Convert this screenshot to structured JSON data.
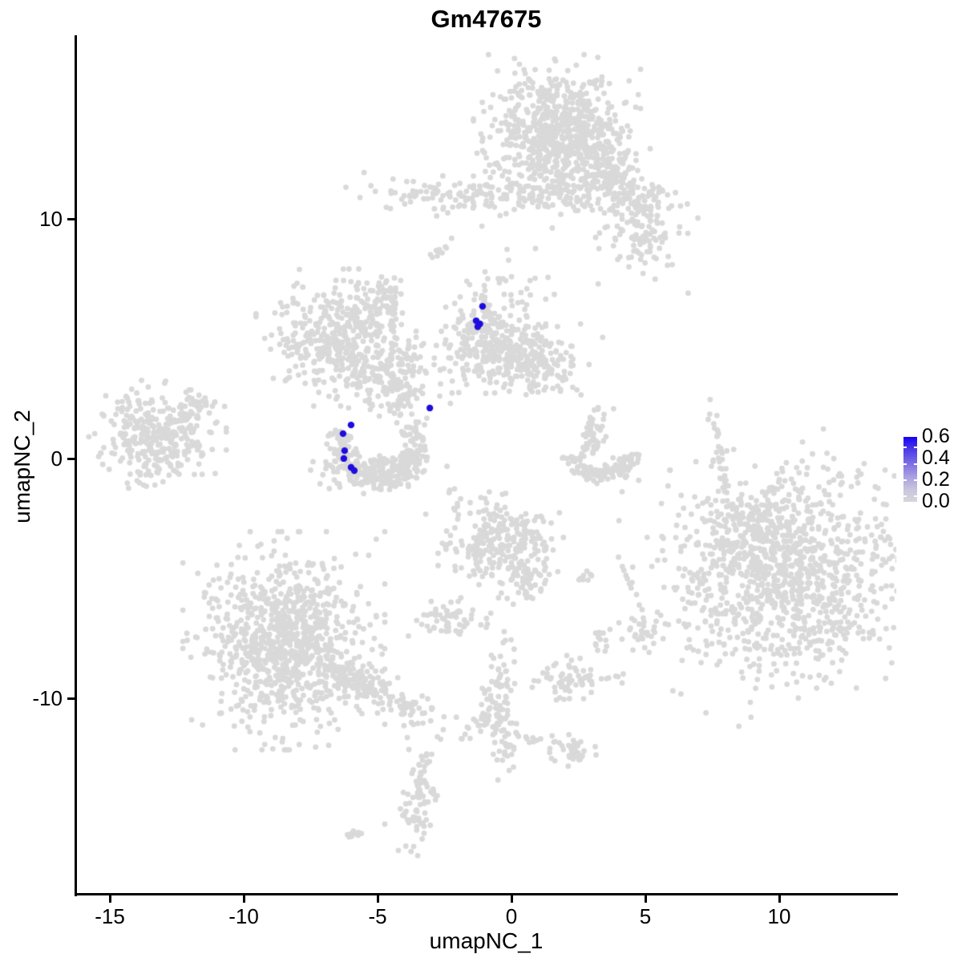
{
  "title": "Gm47675",
  "axes": {
    "x": {
      "label": "umapNC_1",
      "tick_labels": [
        "-15",
        "-10",
        "-5",
        "0",
        "5",
        "10"
      ],
      "tick_values": [
        -15,
        -10,
        -5,
        0,
        5,
        10
      ]
    },
    "y": {
      "label": "umapNC_2",
      "tick_labels": [
        "10",
        "0",
        "-10"
      ],
      "tick_values": [
        10,
        0,
        -10
      ]
    }
  },
  "legend": {
    "labels": [
      "0.6",
      "0.4",
      "0.2",
      "0.0"
    ],
    "tick_values": [
      0.6,
      0.4,
      0.2,
      0.0
    ],
    "high_color": "#1602f2",
    "low_color": "#d8d6da"
  },
  "colors": {
    "background": "#ffffff",
    "point_gray": "#d9d9d9",
    "point_blue": "#1e0ddd",
    "axis": "#000000"
  },
  "chart_data": {
    "type": "scatter",
    "title": "Gm47675",
    "xlabel": "umapNC_1",
    "ylabel": "umapNC_2",
    "xlim": [
      -16.3,
      14.4
    ],
    "ylim": [
      -18.2,
      17.6
    ],
    "grid": false,
    "legend_position": "right",
    "colorbar": {
      "min": 0.0,
      "max": 0.65,
      "ticks": [
        0.0,
        0.2,
        0.4,
        0.6
      ]
    },
    "point_radius_px": 3.4,
    "clusters": [
      {
        "name": "top-main",
        "kind": "gauss",
        "center": [
          1.7,
          13.6
        ],
        "sd": [
          1.2,
          1.25
        ],
        "rot": 0,
        "n": 700
      },
      {
        "name": "top-sub",
        "kind": "gauss",
        "center": [
          3.5,
          11.9
        ],
        "sd": [
          0.65,
          0.7
        ],
        "rot": -20,
        "n": 150
      },
      {
        "name": "top-band-left",
        "kind": "gauss",
        "center": [
          -1.6,
          11.0
        ],
        "sd": [
          2.1,
          0.38
        ],
        "rot": 0,
        "n": 130
      },
      {
        "name": "top-band-right",
        "kind": "gauss",
        "center": [
          1.6,
          10.9
        ],
        "sd": [
          1.35,
          0.38
        ],
        "rot": 0,
        "n": 55
      },
      {
        "name": "top-right",
        "kind": "gauss",
        "center": [
          4.9,
          10.2
        ],
        "sd": [
          0.75,
          0.95
        ],
        "rot": 15,
        "n": 120
      },
      {
        "name": "top-right-scatter",
        "kind": "gauss",
        "center": [
          4.8,
          8.9
        ],
        "sd": [
          0.6,
          0.7
        ],
        "rot": 0,
        "n": 45
      },
      {
        "name": "dash-upper",
        "kind": "gauss",
        "center": [
          -2.75,
          8.66
        ],
        "sd": [
          0.28,
          0.1
        ],
        "rot": 35,
        "n": 12
      },
      {
        "name": "midleft-main",
        "kind": "gauss",
        "center": [
          -6.55,
          5.05
        ],
        "sd": [
          1.15,
          1.1
        ],
        "rot": 0,
        "n": 380
      },
      {
        "name": "midleft-arm",
        "kind": "gauss",
        "center": [
          -5.05,
          6.6
        ],
        "sd": [
          0.5,
          0.45
        ],
        "rot": 40,
        "n": 55
      },
      {
        "name": "midleft-strand",
        "kind": "gauss",
        "center": [
          -4.5,
          6.1
        ],
        "sd": [
          0.15,
          0.75
        ],
        "rot": 0,
        "n": 30
      },
      {
        "name": "central-small",
        "kind": "gauss",
        "center": [
          -4.6,
          3.4
        ],
        "sd": [
          0.75,
          0.72
        ],
        "rot": 0,
        "n": 150
      },
      {
        "name": "central-tail",
        "kind": "gauss",
        "center": [
          -4.2,
          2.25
        ],
        "sd": [
          0.22,
          0.6
        ],
        "rot": 0,
        "n": 30
      },
      {
        "name": "central-scatter",
        "kind": "gauss",
        "center": [
          -2.8,
          3.75
        ],
        "sd": [
          0.75,
          0.6
        ],
        "rot": 0,
        "n": 20
      },
      {
        "name": "mid-main",
        "kind": "gauss",
        "center": [
          -0.8,
          4.9
        ],
        "sd": [
          0.8,
          1.0
        ],
        "rot": 0,
        "n": 280
      },
      {
        "name": "mid-right",
        "kind": "gauss",
        "center": [
          1.0,
          4.1
        ],
        "sd": [
          0.9,
          0.72
        ],
        "rot": -15,
        "n": 170
      },
      {
        "name": "mid-top-scatter",
        "kind": "gauss",
        "center": [
          0.0,
          7.6
        ],
        "sd": [
          0.9,
          1.0
        ],
        "rot": 0,
        "n": 22
      },
      {
        "name": "farleft-main",
        "kind": "gauss",
        "center": [
          -13.25,
          1.0
        ],
        "sd": [
          1.0,
          0.87
        ],
        "rot": 0,
        "n": 340
      },
      {
        "name": "farleft-arm",
        "kind": "gauss",
        "center": [
          -11.7,
          2.3
        ],
        "sd": [
          0.38,
          0.28
        ],
        "rot": 40,
        "n": 28
      },
      {
        "name": "crescent-left",
        "kind": "arc",
        "center": [
          -5.0,
          0.55
        ],
        "r": 1.44,
        "rj": 0.28,
        "a0": 155,
        "a1": 395,
        "n": 240
      },
      {
        "name": "crescent-left-fill",
        "kind": "gauss",
        "center": [
          -4.9,
          -0.5
        ],
        "sd": [
          1.0,
          0.33
        ],
        "rot": 0,
        "n": 120
      },
      {
        "name": "hook-right",
        "kind": "arc",
        "center": [
          3.3,
          0.57
        ],
        "r": 1.25,
        "rj": 0.2,
        "a0": 200,
        "a1": 345,
        "n": 110
      },
      {
        "name": "hook-right-arm",
        "kind": "gauss",
        "center": [
          3.0,
          0.9
        ],
        "sd": [
          0.25,
          0.6
        ],
        "rot": -10,
        "n": 55
      },
      {
        "name": "strand-right",
        "kind": "gauss",
        "center": [
          7.8,
          0.15
        ],
        "sd": [
          0.12,
          0.9
        ],
        "rot": 10,
        "n": 32
      },
      {
        "name": "centerbottom",
        "kind": "gauss",
        "center": [
          -0.4,
          -3.6
        ],
        "sd": [
          0.9,
          0.85
        ],
        "rot": 0,
        "n": 260
      },
      {
        "name": "centerbottom-tail",
        "kind": "gauss",
        "center": [
          0.7,
          -5.0
        ],
        "sd": [
          0.42,
          0.48
        ],
        "rot": -30,
        "n": 50
      },
      {
        "name": "small-horiz",
        "kind": "gauss",
        "center": [
          -2.3,
          -6.7
        ],
        "sd": [
          0.65,
          0.33
        ],
        "rot": 0,
        "n": 60
      },
      {
        "name": "dots-pair",
        "kind": "gauss",
        "center": [
          2.6,
          -4.9
        ],
        "sd": [
          0.25,
          0.18
        ],
        "rot": 0,
        "n": 8
      },
      {
        "name": "small-star",
        "kind": "gauss",
        "center": [
          4.85,
          -7.1
        ],
        "sd": [
          0.45,
          0.38
        ],
        "rot": 0,
        "n": 30
      },
      {
        "name": "tiny-blob",
        "kind": "gauss",
        "center": [
          3.3,
          -7.5
        ],
        "sd": [
          0.2,
          0.3
        ],
        "rot": 0,
        "n": 12
      },
      {
        "name": "mid-gap-scatter",
        "kind": "gauss",
        "center": [
          -2.3,
          -1.8
        ],
        "sd": [
          0.6,
          0.5
        ],
        "rot": 0,
        "n": 10
      },
      {
        "name": "bottomleft-main",
        "kind": "gauss",
        "center": [
          -8.5,
          -7.6
        ],
        "sd": [
          1.45,
          1.75
        ],
        "rot": 0,
        "n": 900
      },
      {
        "name": "bottomleft-band",
        "kind": "gauss",
        "center": [
          -5.5,
          -9.45
        ],
        "sd": [
          1.65,
          0.35
        ],
        "rot": -31,
        "n": 190
      },
      {
        "name": "bottomright-main",
        "kind": "gauss",
        "center": [
          10.3,
          -4.7
        ],
        "sd": [
          2.2,
          2.1
        ],
        "rot": 20,
        "n": 1100
      },
      {
        "name": "bottomright-edge",
        "kind": "gauss",
        "center": [
          9.0,
          -3.2
        ],
        "sd": [
          0.8,
          0.9
        ],
        "rot": 0,
        "n": 150
      },
      {
        "name": "midbottom-small",
        "kind": "gauss",
        "center": [
          2.35,
          -9.2
        ],
        "sd": [
          0.75,
          0.4
        ],
        "rot": 0,
        "n": 70
      },
      {
        "name": "strand-diag",
        "kind": "gauss",
        "center": [
          -0.7,
          -9.8
        ],
        "sd": [
          0.2,
          1.0
        ],
        "rot": -15,
        "n": 60
      },
      {
        "name": "strand-vert",
        "kind": "gauss",
        "center": [
          -0.3,
          -11.2
        ],
        "sd": [
          0.28,
          0.85
        ],
        "rot": 0,
        "n": 60
      },
      {
        "name": "side-dots",
        "kind": "gauss",
        "center": [
          0.9,
          -11.7
        ],
        "sd": [
          0.55,
          0.18
        ],
        "rot": 0,
        "n": 12
      },
      {
        "name": "arrow-bottom",
        "kind": "gauss",
        "center": [
          2.3,
          -12.3
        ],
        "sd": [
          0.42,
          0.3
        ],
        "rot": 0,
        "n": 35
      },
      {
        "name": "seahorse",
        "kind": "gauss",
        "center": [
          -3.4,
          -14.1
        ],
        "sd": [
          0.3,
          0.95
        ],
        "rot": -10,
        "n": 85
      },
      {
        "name": "dash-bottomleft",
        "kind": "gauss",
        "center": [
          -5.9,
          -15.7
        ],
        "sd": [
          0.28,
          0.1
        ],
        "rot": 35,
        "n": 10
      }
    ],
    "single_points": [
      [
        6.6,
        6.9
      ],
      [
        -4.73,
        -15.25
      ],
      [
        -3.89,
        -11.64
      ],
      [
        -3.83,
        -12.14
      ],
      [
        -1.65,
        -11.2
      ],
      [
        0.21,
        -11.5
      ]
    ],
    "highlighted_points": [
      {
        "x": -1.08,
        "y": 6.35,
        "value": 0.7
      },
      {
        "x": -1.32,
        "y": 5.75,
        "value": 0.65
      },
      {
        "x": -1.18,
        "y": 5.62,
        "value": 0.68
      },
      {
        "x": -1.26,
        "y": 5.5,
        "value": 0.62
      },
      {
        "x": -3.05,
        "y": 2.11,
        "value": 0.65
      },
      {
        "x": -5.99,
        "y": 1.4,
        "value": 0.63
      },
      {
        "x": -6.29,
        "y": 1.04,
        "value": 0.66
      },
      {
        "x": -6.23,
        "y": 0.33,
        "value": 0.64
      },
      {
        "x": -6.26,
        "y": 0.0,
        "value": 0.67
      },
      {
        "x": -5.99,
        "y": -0.37,
        "value": 0.62
      },
      {
        "x": -5.87,
        "y": -0.5,
        "value": 0.65
      }
    ]
  }
}
